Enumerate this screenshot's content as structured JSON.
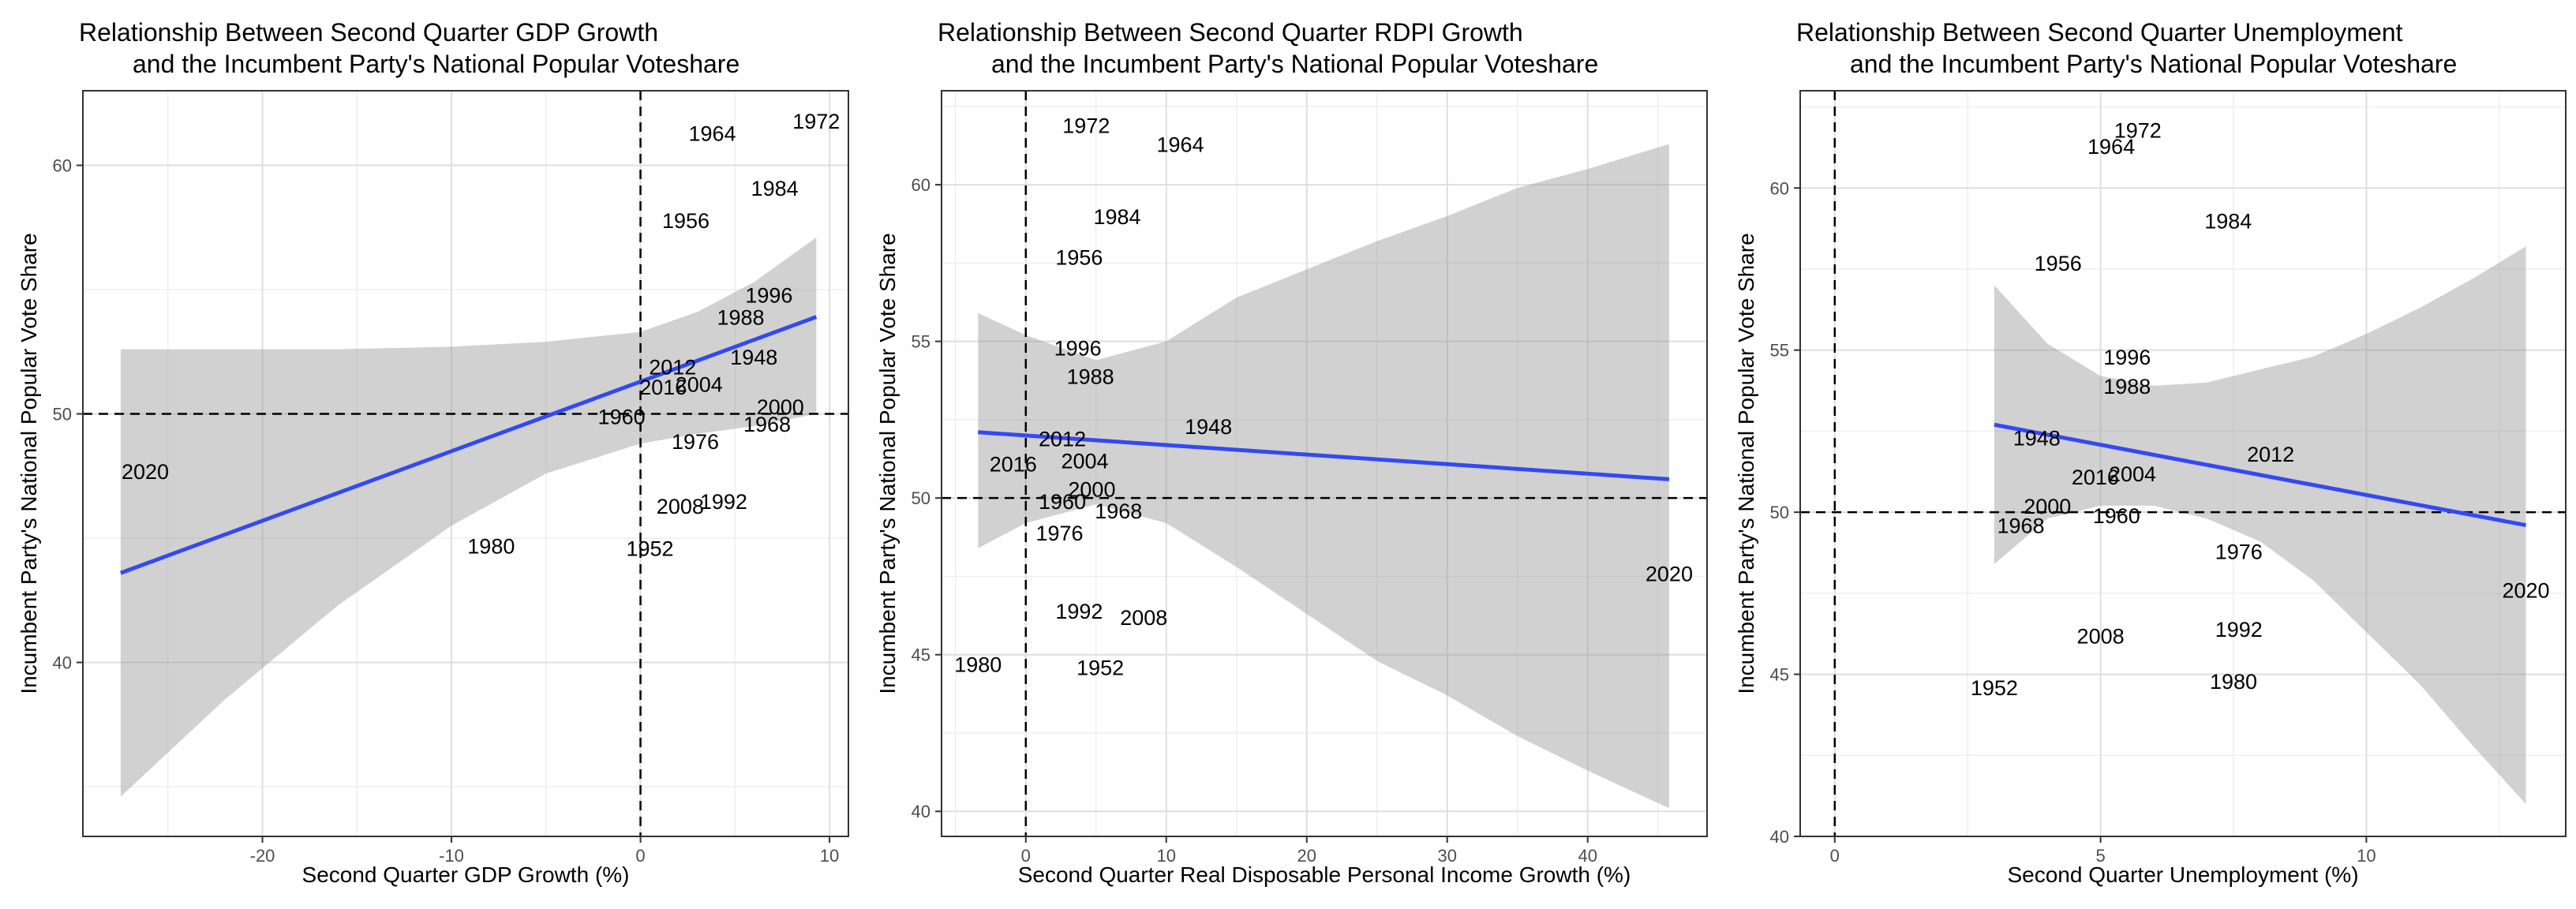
{
  "chart_data": [
    {
      "type": "scatter",
      "title_line1": "Relationship Between Second Quarter GDP Growth",
      "title_line2": "and the Incumbent Party's National Popular Voteshare",
      "xlabel": "Second Quarter GDP Growth (%)",
      "ylabel": "Incumbent Party's National Popular Vote Share",
      "xlim": [
        -29.5,
        11
      ],
      "ylim": [
        33,
        63
      ],
      "xticks": [
        -20,
        -10,
        0,
        10
      ],
      "yticks": [
        40,
        50,
        60
      ],
      "vline": 0,
      "hline": 50,
      "grid": true,
      "points": [
        {
          "label": "1948",
          "x": 6.0,
          "y": 52.3
        },
        {
          "label": "1952",
          "x": 0.5,
          "y": 44.6
        },
        {
          "label": "1956",
          "x": 2.4,
          "y": 57.8
        },
        {
          "label": "1960",
          "x": -1.0,
          "y": 49.9
        },
        {
          "label": "1964",
          "x": 3.8,
          "y": 61.3
        },
        {
          "label": "1968",
          "x": 6.7,
          "y": 49.6
        },
        {
          "label": "1972",
          "x": 9.3,
          "y": 61.8
        },
        {
          "label": "1976",
          "x": 2.9,
          "y": 48.9
        },
        {
          "label": "1980",
          "x": -7.9,
          "y": 44.7
        },
        {
          "label": "1984",
          "x": 7.1,
          "y": 59.1
        },
        {
          "label": "1988",
          "x": 5.3,
          "y": 53.9
        },
        {
          "label": "1992",
          "x": 4.4,
          "y": 46.5
        },
        {
          "label": "1996",
          "x": 6.8,
          "y": 54.8
        },
        {
          "label": "2000",
          "x": 7.4,
          "y": 50.3
        },
        {
          "label": "2004",
          "x": 3.1,
          "y": 51.2
        },
        {
          "label": "2008",
          "x": 2.1,
          "y": 46.3
        },
        {
          "label": "2012",
          "x": 1.7,
          "y": 51.9
        },
        {
          "label": "2016",
          "x": 1.2,
          "y": 51.1
        },
        {
          "label": "2020",
          "x": -26.2,
          "y": 47.7
        }
      ],
      "fit": {
        "x": [
          -27.5,
          9.3
        ],
        "y": [
          43.6,
          53.9
        ]
      },
      "band_x": [
        -27.5,
        -22,
        -16,
        -10,
        -5,
        0,
        3,
        6,
        9.3
      ],
      "band_lower": [
        34.6,
        38.5,
        42.3,
        45.5,
        47.6,
        48.8,
        49.2,
        49.5,
        50.0
      ],
      "band_upper": [
        52.6,
        52.6,
        52.6,
        52.7,
        52.9,
        53.3,
        54.1,
        55.3,
        57.1
      ]
    },
    {
      "type": "scatter",
      "title_line1": "Relationship Between Second Quarter RDPI Growth",
      "title_line2": "and the Incumbent Party's National Popular Voteshare",
      "xlabel": "Second Quarter Real Disposable Personal Income Growth (%)",
      "ylabel": "Incumbent Party's National Popular Vote Share",
      "xlim": [
        -6,
        48.5
      ],
      "ylim": [
        39.2,
        63
      ],
      "xticks": [
        0,
        10,
        20,
        30,
        40
      ],
      "yticks": [
        40,
        45,
        50,
        55,
        60
      ],
      "vline": 0,
      "hline": 50,
      "grid": true,
      "points": [
        {
          "label": "1948",
          "x": 13.0,
          "y": 52.3
        },
        {
          "label": "1952",
          "x": 5.3,
          "y": 44.6
        },
        {
          "label": "1956",
          "x": 3.8,
          "y": 57.7
        },
        {
          "label": "1960",
          "x": 2.6,
          "y": 49.9
        },
        {
          "label": "1964",
          "x": 11.0,
          "y": 61.3
        },
        {
          "label": "1968",
          "x": 6.6,
          "y": 49.6
        },
        {
          "label": "1972",
          "x": 4.3,
          "y": 61.9
        },
        {
          "label": "1976",
          "x": 2.4,
          "y": 48.9
        },
        {
          "label": "1980",
          "x": -3.4,
          "y": 44.7
        },
        {
          "label": "1984",
          "x": 6.5,
          "y": 59.0
        },
        {
          "label": "1988",
          "x": 4.6,
          "y": 53.9
        },
        {
          "label": "1992",
          "x": 3.8,
          "y": 46.4
        },
        {
          "label": "1996",
          "x": 3.7,
          "y": 54.8
        },
        {
          "label": "2000",
          "x": 4.7,
          "y": 50.3
        },
        {
          "label": "2004",
          "x": 4.2,
          "y": 51.2
        },
        {
          "label": "2008",
          "x": 8.4,
          "y": 46.2
        },
        {
          "label": "2012",
          "x": 2.6,
          "y": 51.9
        },
        {
          "label": "2016",
          "x": -0.9,
          "y": 51.1
        },
        {
          "label": "2020",
          "x": 45.8,
          "y": 47.6
        }
      ],
      "fit": {
        "x": [
          -3.4,
          45.8
        ],
        "y": [
          52.1,
          50.6
        ]
      },
      "band_x": [
        -3.4,
        0,
        5,
        10,
        15,
        20,
        25,
        30,
        35,
        40,
        45.8
      ],
      "band_lower": [
        48.4,
        49.2,
        49.8,
        49.2,
        47.8,
        46.3,
        44.8,
        43.7,
        42.4,
        41.3,
        40.1
      ],
      "band_upper": [
        55.9,
        55.2,
        54.4,
        55.0,
        56.4,
        57.3,
        58.2,
        59.0,
        59.9,
        60.5,
        61.3
      ]
    },
    {
      "type": "scatter",
      "title_line1": "Relationship Between Second Quarter Unemployment",
      "title_line2": "and the Incumbent Party's National Popular Voteshare",
      "xlabel": "Second Quarter Unemployment (%)",
      "ylabel": "Incumbent Party's National Popular Vote Share",
      "xlim": [
        -0.65,
        13.75
      ],
      "ylim": [
        40,
        63
      ],
      "xticks": [
        0,
        5,
        10
      ],
      "yticks": [
        40,
        45,
        50,
        55,
        60
      ],
      "vline": 0,
      "hline": 50,
      "grid": true,
      "points": [
        {
          "label": "1948",
          "x": 3.8,
          "y": 52.3
        },
        {
          "label": "1952",
          "x": 3.0,
          "y": 44.6
        },
        {
          "label": "1956",
          "x": 4.2,
          "y": 57.7
        },
        {
          "label": "1960",
          "x": 5.3,
          "y": 49.9
        },
        {
          "label": "1964",
          "x": 5.2,
          "y": 61.3
        },
        {
          "label": "1968",
          "x": 3.5,
          "y": 49.6
        },
        {
          "label": "1972",
          "x": 5.7,
          "y": 61.8
        },
        {
          "label": "1976",
          "x": 7.6,
          "y": 48.8
        },
        {
          "label": "1980",
          "x": 7.5,
          "y": 44.8
        },
        {
          "label": "1984",
          "x": 7.4,
          "y": 59.0
        },
        {
          "label": "1988",
          "x": 5.5,
          "y": 53.9
        },
        {
          "label": "1992",
          "x": 7.6,
          "y": 46.4
        },
        {
          "label": "1996",
          "x": 5.5,
          "y": 54.8
        },
        {
          "label": "2000",
          "x": 4.0,
          "y": 50.2
        },
        {
          "label": "2004",
          "x": 5.6,
          "y": 51.2
        },
        {
          "label": "2008",
          "x": 5.0,
          "y": 46.2
        },
        {
          "label": "2012",
          "x": 8.2,
          "y": 51.8
        },
        {
          "label": "2016",
          "x": 4.9,
          "y": 51.1
        },
        {
          "label": "2020",
          "x": 13.0,
          "y": 47.6
        }
      ],
      "fit": {
        "x": [
          3.0,
          13.0
        ],
        "y": [
          52.7,
          49.6
        ]
      },
      "band_x": [
        3.0,
        4.0,
        5.0,
        6.0,
        7.0,
        8.0,
        9.0,
        10.0,
        11.0,
        12.0,
        13.0
      ],
      "band_lower": [
        48.4,
        49.8,
        50.2,
        50.2,
        49.8,
        49.1,
        47.9,
        46.3,
        44.7,
        42.8,
        41.0
      ],
      "band_upper": [
        57.0,
        55.2,
        54.2,
        53.9,
        54.0,
        54.4,
        54.8,
        55.5,
        56.3,
        57.2,
        58.2
      ]
    }
  ]
}
